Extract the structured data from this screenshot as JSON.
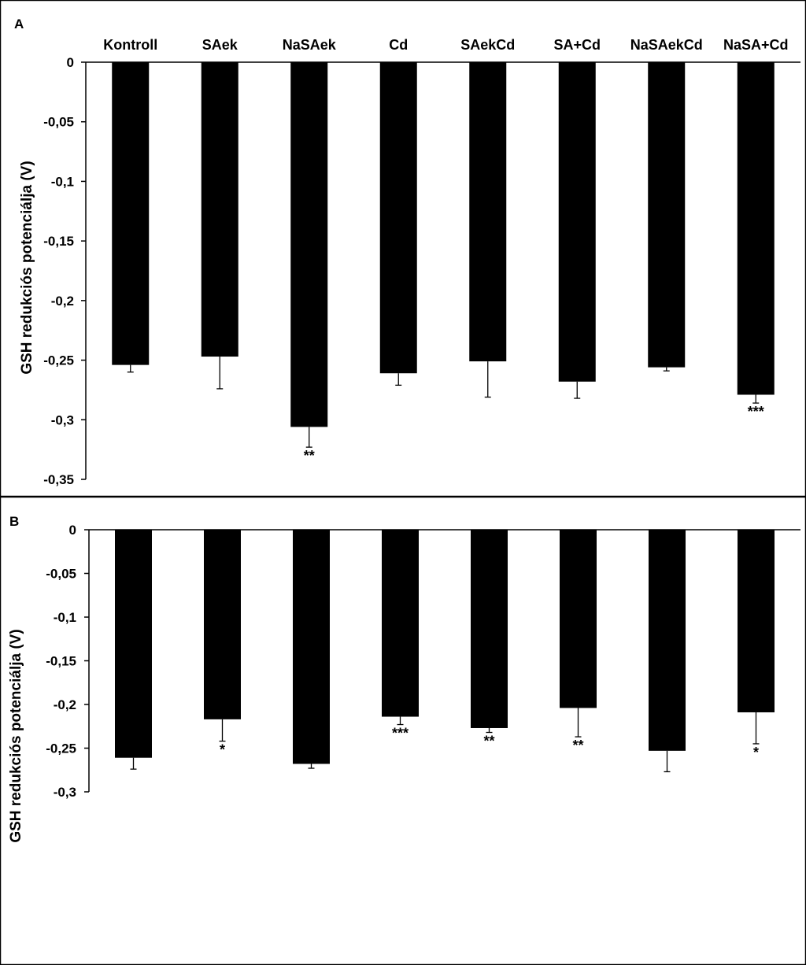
{
  "chart_data": [
    {
      "panel": "A",
      "type": "bar",
      "ylabel": "GSH redukciós potenciálja  (V)",
      "categories": [
        "Kontroll",
        "SAek",
        "NaSAek",
        "Cd",
        "SAekCd",
        "SA+Cd",
        "NaSAekCd",
        "NaSA+Cd"
      ],
      "values": [
        -0.254,
        -0.247,
        -0.306,
        -0.261,
        -0.251,
        -0.268,
        -0.256,
        -0.279
      ],
      "errors": [
        0.006,
        0.027,
        0.017,
        0.01,
        0.03,
        0.014,
        0.003,
        0.007
      ],
      "significance": [
        "",
        "",
        "**",
        "",
        "",
        "",
        "",
        "***"
      ],
      "ylim": [
        -0.35,
        0
      ],
      "yticks": [
        "0",
        "-0,05",
        "-0,1",
        "-0,15",
        "-0,2",
        "-0,25",
        "-0,3",
        "-0,35"
      ],
      "category_labels_position": "top"
    },
    {
      "panel": "B",
      "type": "bar",
      "ylabel": "GSH redukciós potenciálja  (V)",
      "categories": [
        "Kontroll",
        "SAek",
        "NaSAek",
        "Cd",
        "SAekCd",
        "SA+Cd",
        "NaSAekCd",
        "NaSA+Cd"
      ],
      "values": [
        -0.261,
        -0.217,
        -0.268,
        -0.214,
        -0.227,
        -0.204,
        -0.253,
        -0.209
      ],
      "errors": [
        0.013,
        0.025,
        0.005,
        0.009,
        0.005,
        0.033,
        0.024,
        0.036
      ],
      "significance": [
        "",
        "*",
        "",
        "***",
        "**",
        "**",
        "",
        "*"
      ],
      "ylim": [
        -0.3,
        0
      ],
      "yticks": [
        "0",
        "-0,05",
        "-0,1",
        "-0,15",
        "-0,2",
        "-0,25",
        "-0,3"
      ],
      "show_category_labels": false
    }
  ],
  "colors": {
    "bar": "#000000",
    "axis": "#000000",
    "border": "#000000",
    "background": "#ffffff"
  }
}
